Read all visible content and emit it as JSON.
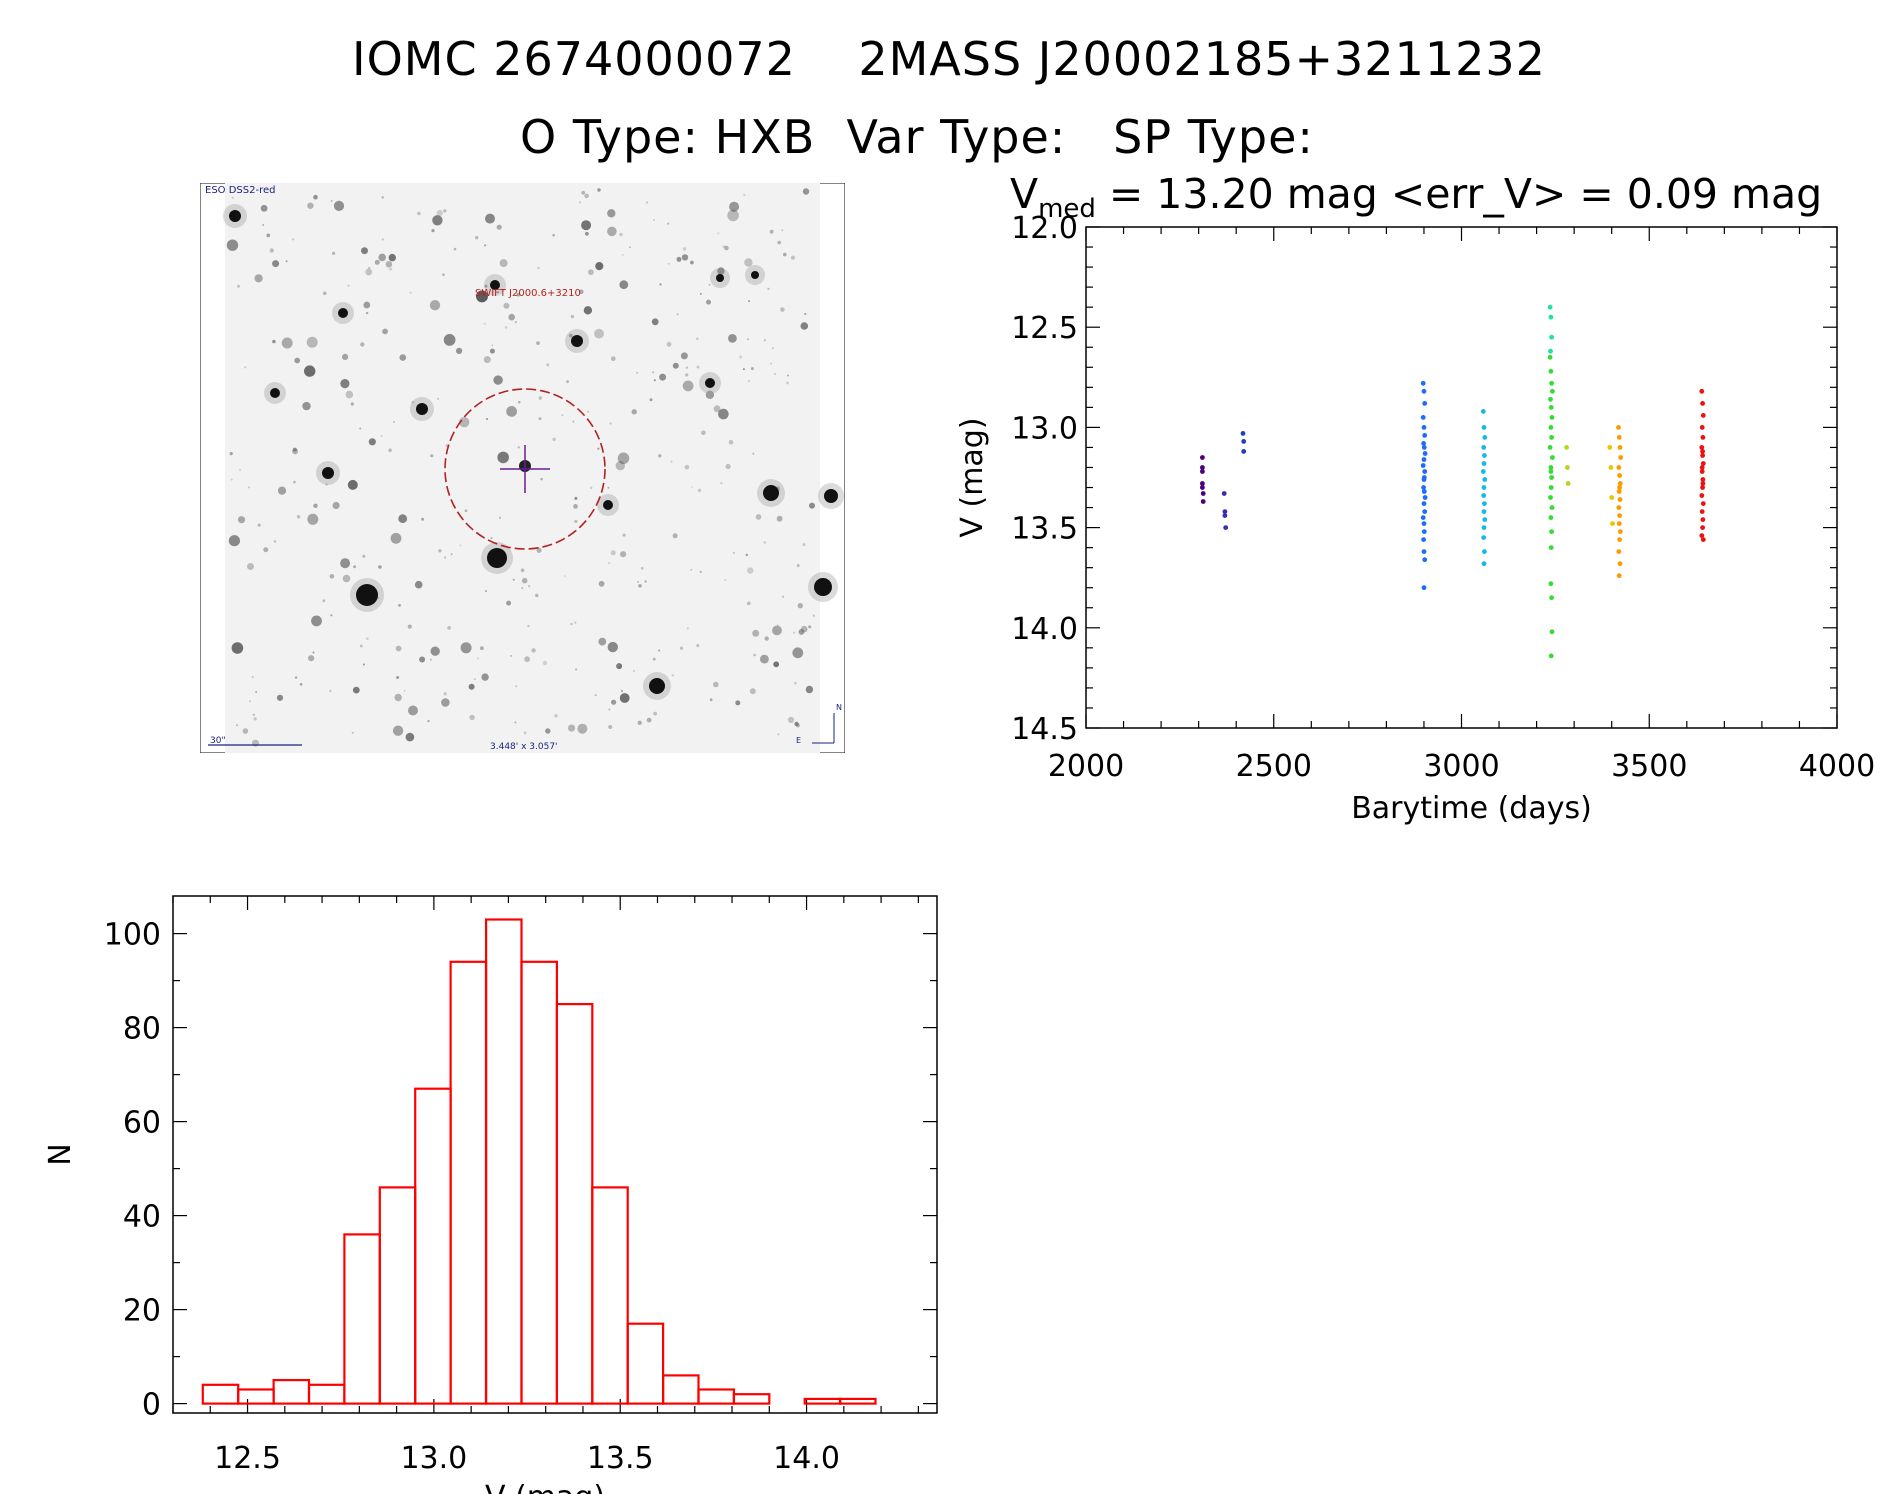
{
  "header": {
    "line1": "IOMC 2674000072    2MASS J20002185+3211232",
    "line2": "O Type: HXB  Var Type:   SP Type:"
  },
  "image_panel": {
    "survey_label": "ESO DSS2-red",
    "source_label": "SWIFT J2000.6+3210",
    "scale_label": "30\"",
    "size_label": "3.448' x 3.057'",
    "compass_n": "N",
    "compass_e": "E"
  },
  "colors": {
    "histogram": "#ff0000",
    "marker_cross": "#6a1b9a",
    "circle": "#b22222"
  },
  "chart_data": [
    {
      "type": "scatter",
      "title_prefix": "V",
      "title_sub": "med",
      "title_suffix": " = 13.20 mag <err_V> = 0.09 mag",
      "xlabel": "Barytime (days)",
      "ylabel": "V (mag)",
      "xlim": [
        2000,
        4000
      ],
      "ylim": [
        14.5,
        12.0
      ],
      "y_inverted": true,
      "xticks": [
        "2000",
        "2500",
        "3000",
        "3500",
        "4000"
      ],
      "yticks": [
        "12.0",
        "12.5",
        "13.0",
        "13.5",
        "14.0",
        "14.5"
      ],
      "series": [
        {
          "color": "#4b0082",
          "x": [
            2310,
            2310,
            2310,
            2310,
            2310,
            2312,
            2312
          ],
          "y": [
            13.15,
            13.2,
            13.22,
            13.28,
            13.3,
            13.33,
            13.37
          ]
        },
        {
          "color": "#3a2fb0",
          "x": [
            2368,
            2370,
            2370,
            2372
          ],
          "y": [
            13.33,
            13.42,
            13.44,
            13.5
          ]
        },
        {
          "color": "#1f3fbf",
          "x": [
            2418,
            2420,
            2420
          ],
          "y": [
            13.03,
            13.07,
            13.12
          ]
        },
        {
          "color": "#1e6bff",
          "x": [
            2898,
            2900,
            2902,
            2898,
            2900,
            2902,
            2899,
            2901,
            2903,
            2900,
            2898,
            2902,
            2900,
            2899,
            2901,
            2903,
            2900,
            2902,
            2898,
            2900,
            2901,
            2899,
            2900,
            2902,
            2900,
            2901
          ],
          "y": [
            12.78,
            12.82,
            12.88,
            12.95,
            13.0,
            13.04,
            13.08,
            13.1,
            13.13,
            13.16,
            13.19,
            13.22,
            13.26,
            13.3,
            13.32,
            13.35,
            13.38,
            13.42,
            13.45,
            13.48,
            13.52,
            13.56,
            13.62,
            13.66,
            13.8,
            13.25
          ]
        },
        {
          "color": "#17b8e6",
          "x": [
            3058,
            3060,
            3062,
            3059,
            3061,
            3060,
            3058,
            3062,
            3060,
            3059,
            3061,
            3060,
            3062,
            3060,
            3059,
            3061,
            3060
          ],
          "y": [
            12.92,
            13.0,
            13.05,
            13.1,
            13.14,
            13.18,
            13.22,
            13.26,
            13.3,
            13.34,
            13.38,
            13.42,
            13.46,
            13.5,
            13.55,
            13.62,
            13.68
          ]
        },
        {
          "color": "#19e6a0",
          "x": [
            3236,
            3238,
            3240,
            3237
          ],
          "y": [
            12.4,
            12.45,
            12.55,
            12.62
          ]
        },
        {
          "color": "#33dd33",
          "x": [
            3236,
            3238,
            3240,
            3242,
            3237,
            3239,
            3241,
            3238,
            3240,
            3236,
            3242,
            3238,
            3240,
            3239,
            3237,
            3241,
            3238,
            3240,
            3239,
            3238,
            3240,
            3241,
            3239,
            3238
          ],
          "y": [
            12.65,
            12.72,
            12.78,
            12.82,
            12.86,
            12.9,
            12.95,
            13.0,
            13.05,
            13.1,
            13.15,
            13.2,
            13.25,
            13.3,
            13.35,
            13.4,
            13.45,
            13.52,
            13.6,
            13.78,
            13.85,
            14.02,
            14.14,
            13.22
          ]
        },
        {
          "color": "#b5d81a",
          "x": [
            3280,
            3282,
            3284
          ],
          "y": [
            13.1,
            13.2,
            13.28
          ]
        },
        {
          "color": "#f2c200",
          "x": [
            3395,
            3398,
            3400,
            3402
          ],
          "y": [
            13.1,
            13.2,
            13.35,
            13.48
          ]
        },
        {
          "color": "#ff9900",
          "x": [
            3418,
            3420,
            3422,
            3424,
            3419,
            3421,
            3423,
            3420,
            3422,
            3419,
            3421,
            3420,
            3423,
            3421,
            3419,
            3422,
            3420,
            3421
          ],
          "y": [
            13.0,
            13.05,
            13.1,
            13.15,
            13.2,
            13.24,
            13.28,
            13.32,
            13.36,
            13.4,
            13.44,
            13.48,
            13.52,
            13.56,
            13.62,
            13.68,
            13.74,
            13.3
          ]
        },
        {
          "color": "#ee1111",
          "x": [
            3640,
            3642,
            3644,
            3641,
            3643,
            3640,
            3642,
            3644,
            3641,
            3643,
            3642,
            3640,
            3644,
            3641,
            3643,
            3642,
            3640,
            3644,
            3641,
            3643,
            3642
          ],
          "y": [
            12.82,
            12.88,
            12.94,
            13.0,
            13.05,
            13.1,
            13.14,
            13.18,
            13.22,
            13.26,
            13.3,
            13.34,
            13.38,
            13.42,
            13.46,
            13.5,
            13.54,
            13.56,
            13.2,
            13.28,
            13.12
          ]
        }
      ]
    },
    {
      "type": "bar",
      "subtype": "histogram",
      "xlabel": "V (mag)",
      "ylabel": "N",
      "xlim": [
        12.3,
        14.35
      ],
      "ylim": [
        -2,
        108
      ],
      "xticks": [
        "12.5",
        "13.0",
        "13.5",
        "14.0"
      ],
      "yticks": [
        "0",
        "20",
        "40",
        "60",
        "80",
        "100"
      ],
      "bin_edges": [
        12.38,
        12.475,
        12.57,
        12.665,
        12.76,
        12.855,
        12.95,
        13.045,
        13.14,
        13.235,
        13.33,
        13.425,
        13.52,
        13.615,
        13.71,
        13.805,
        13.9,
        13.995,
        14.09,
        14.185
      ],
      "values": [
        4,
        3,
        5,
        4,
        36,
        46,
        67,
        94,
        103,
        94,
        85,
        46,
        17,
        6,
        3,
        2,
        0,
        1,
        1
      ]
    }
  ]
}
